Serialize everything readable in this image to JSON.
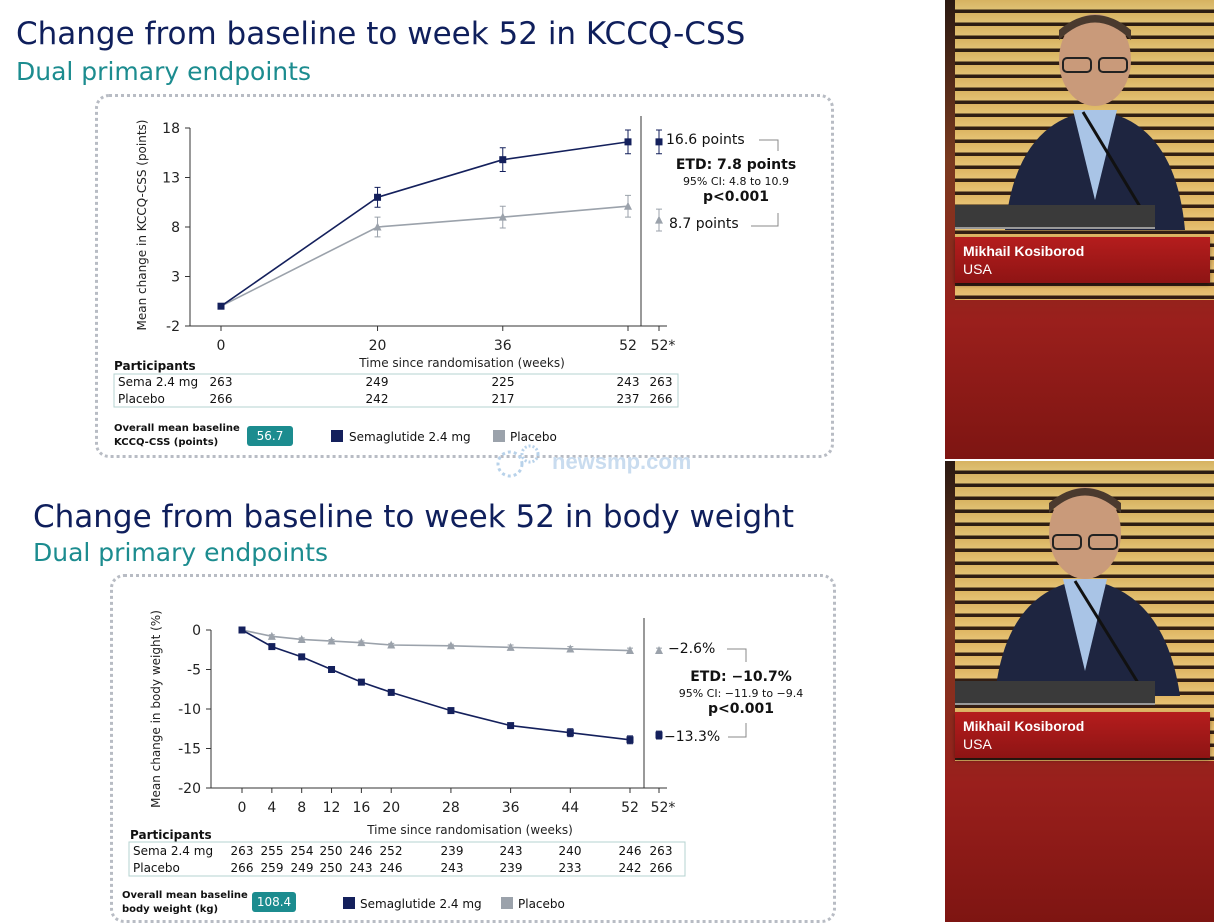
{
  "slides": [
    {
      "title": "Change from baseline to week 52 in KCCQ-CSS",
      "subtitle": "Dual primary endpoints",
      "participants_heading": "Participants",
      "participants": [
        {
          "label": "Sema 2.4 mg",
          "values": [
            "263",
            "249",
            "225",
            "243",
            "263"
          ]
        },
        {
          "label": "Placebo",
          "values": [
            "266",
            "242",
            "217",
            "237",
            "266"
          ]
        }
      ],
      "baseline_label": [
        "Overall mean baseline",
        "KCCQ-CSS (points)"
      ],
      "baseline_value": "56.7",
      "legend": [
        {
          "label": "Semaglutide 2.4 mg",
          "color": "#14205c"
        },
        {
          "label": "Placebo",
          "color": "#9ba2ab"
        }
      ],
      "annot": {
        "sema_value": "16.6 points",
        "placebo_value": "8.7 points",
        "etd": "ETD: 7.8 points",
        "ci": "95% CI: 4.8 to 10.9",
        "p": "p<0.001"
      }
    },
    {
      "title": "Change from baseline to week 52 in body weight",
      "subtitle": "Dual primary endpoints",
      "participants_heading": "Participants",
      "participants": [
        {
          "label": "Sema 2.4 mg",
          "values": [
            "263",
            "255",
            "254",
            "250",
            "246",
            "252",
            "239",
            "243",
            "240",
            "246",
            "263"
          ]
        },
        {
          "label": "Placebo",
          "values": [
            "266",
            "259",
            "249",
            "250",
            "243",
            "246",
            "243",
            "239",
            "233",
            "242",
            "266"
          ]
        }
      ],
      "baseline_label": [
        "Overall mean baseline",
        "body weight (kg)"
      ],
      "baseline_value": "108.4",
      "legend": [
        {
          "label": "Semaglutide 2.4 mg",
          "color": "#14205c"
        },
        {
          "label": "Placebo",
          "color": "#9ba2ab"
        }
      ],
      "annot": {
        "sema_value": "−13.3%",
        "placebo_value": "−2.6%",
        "etd": "ETD: −10.7%",
        "ci": "95% CI: −11.9 to −9.4",
        "p": "p<0.001"
      }
    }
  ],
  "chart_data": [
    {
      "type": "line",
      "xlabel": "Time since randomisation (weeks)",
      "ylabel": "Mean change in KCCQ-CSS (points)",
      "x": [
        0,
        20,
        36,
        52
      ],
      "x_extra_tick": "52*",
      "ylim": [
        -2,
        18
      ],
      "yticks": [
        -2,
        3,
        8,
        13,
        18
      ],
      "series": [
        {
          "name": "Semaglutide 2.4 mg",
          "marker": "square",
          "color": "#14205c",
          "values": [
            0,
            11.0,
            14.8,
            16.6
          ],
          "error": [
            0,
            1.0,
            1.2,
            1.2
          ],
          "week52_star": 16.6
        },
        {
          "name": "Placebo",
          "marker": "triangle",
          "color": "#9ba2ab",
          "values": [
            0,
            8.0,
            9.0,
            10.1
          ],
          "error": [
            0,
            1.0,
            1.1,
            1.1
          ],
          "week52_star": 8.7
        }
      ]
    },
    {
      "type": "line",
      "xlabel": "Time since randomisation (weeks)",
      "ylabel": "Mean change in body weight (%)",
      "x": [
        0,
        4,
        8,
        12,
        16,
        20,
        28,
        36,
        44,
        52
      ],
      "x_extra_tick": "52*",
      "ylim": [
        -20,
        0
      ],
      "yticks": [
        0,
        -5,
        -10,
        -15,
        -20
      ],
      "series": [
        {
          "name": "Semaglutide 2.4 mg",
          "marker": "square",
          "color": "#14205c",
          "values": [
            0,
            -2.1,
            -3.4,
            -5.0,
            -6.6,
            -7.9,
            -10.2,
            -12.1,
            -13.0,
            -13.9
          ],
          "error": [
            0,
            0.2,
            0.2,
            0.2,
            0.2,
            0.2,
            0.3,
            0.3,
            0.5,
            0.5
          ],
          "week52_star": -13.3
        },
        {
          "name": "Placebo",
          "marker": "triangle",
          "color": "#9ba2ab",
          "values": [
            0,
            -0.8,
            -1.2,
            -1.4,
            -1.6,
            -1.9,
            -2.0,
            -2.2,
            -2.4,
            -2.6
          ],
          "error": [
            0,
            0.2,
            0.2,
            0.2,
            0.2,
            0.2,
            0.2,
            0.3,
            0.3,
            0.3
          ],
          "week52_star": -2.6
        }
      ]
    }
  ],
  "speakers": [
    {
      "name": "Mikhail Kosiborod",
      "country": "USA"
    },
    {
      "name": "Mikhail Kosiborod",
      "country": "USA"
    }
  ],
  "watermark": "newsmp.com"
}
